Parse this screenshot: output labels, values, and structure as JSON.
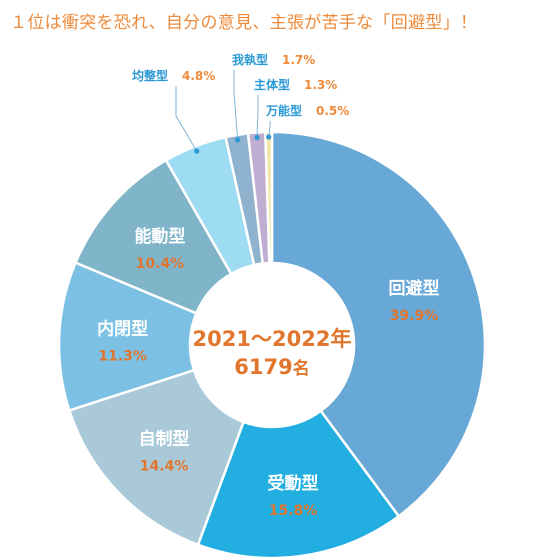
{
  "headline": "１位は衝突を恐れ、自分の意見、主張が苦手な「回避型」！",
  "center_label": {
    "line1": "2021～2022年",
    "line2_number": "6179",
    "line2_unit": "名"
  },
  "colors": {
    "headline": "#ee8a3a",
    "pct_inside": "#e0762d",
    "pct_outside": "#ee8a3a",
    "name_outside": "#2c9ad6",
    "center_text": "#e0762d",
    "leader": "#7fb6d8"
  },
  "chart_data": {
    "type": "pie",
    "variant": "donut",
    "title": "",
    "start_angle_deg": 0,
    "direction": "clockwise",
    "slices": [
      {
        "label": "回避型",
        "value": 39.9,
        "value_label": "39.9%",
        "color": "#68a8d6",
        "label_position": "inside"
      },
      {
        "label": "受動型",
        "value": 15.8,
        "value_label": "15.8%",
        "color": "#22aee0",
        "label_position": "inside"
      },
      {
        "label": "自制型",
        "value": 14.4,
        "value_label": "14.4%",
        "color": "#a9c9d9",
        "label_position": "inside"
      },
      {
        "label": "内閉型",
        "value": 11.3,
        "value_label": "11.3%",
        "color": "#7cc1e3",
        "label_position": "inside"
      },
      {
        "label": "能動型",
        "value": 10.4,
        "value_label": "10.4%",
        "color": "#7fb4c9",
        "label_position": "inside"
      },
      {
        "label": "均整型",
        "value": 4.8,
        "value_label": "4.8%",
        "color": "#9ddcf2",
        "label_position": "outside"
      },
      {
        "label": "我執型",
        "value": 1.7,
        "value_label": "1.7%",
        "color": "#8fb3cf",
        "label_position": "outside"
      },
      {
        "label": "主体型",
        "value": 1.3,
        "value_label": "1.3%",
        "color": "#bfaed1",
        "label_position": "outside"
      },
      {
        "label": "万能型",
        "value": 0.5,
        "value_label": "0.5%",
        "color": "#efe6a6",
        "label_position": "outside"
      }
    ]
  }
}
